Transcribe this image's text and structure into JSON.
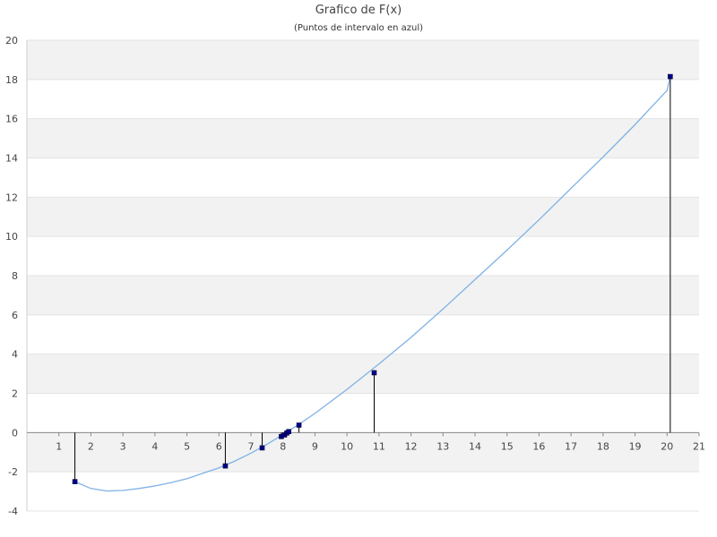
{
  "chart_data": {
    "type": "line",
    "title": "Grafico de F(x)",
    "subtitle": "(Puntos de intervalo en azul)",
    "xlabel": "",
    "ylabel": "",
    "xlim": [
      0,
      21
    ],
    "ylim": [
      -4,
      20
    ],
    "x_ticks": [
      1,
      2,
      3,
      4,
      5,
      6,
      7,
      8,
      9,
      10,
      11,
      12,
      13,
      14,
      15,
      16,
      17,
      18,
      19,
      20,
      21
    ],
    "y_ticks": [
      -4,
      -2,
      0,
      2,
      4,
      6,
      8,
      10,
      12,
      14,
      16,
      18,
      20
    ],
    "grid": "horizontal alternating bands",
    "series": [
      {
        "kind": "curve",
        "color": "#7fb2e5",
        "x": [
          1.5,
          2,
          2.5,
          3,
          3.5,
          4,
          4.5,
          5,
          5.5,
          6,
          6.5,
          7,
          7.5,
          8,
          8.5,
          9,
          10,
          11,
          12,
          13,
          14,
          15,
          16,
          17,
          18,
          19,
          20,
          20.1
        ],
        "y": [
          -2.5,
          -2.85,
          -2.98,
          -2.95,
          -2.85,
          -2.72,
          -2.55,
          -2.35,
          -2.07,
          -1.8,
          -1.45,
          -1.05,
          -0.6,
          -0.1,
          0.42,
          0.98,
          2.2,
          3.5,
          4.85,
          6.3,
          7.8,
          9.3,
          10.85,
          12.45,
          14.05,
          15.7,
          17.45,
          18.15
        ]
      },
      {
        "kind": "interval-points",
        "color": "#00008b",
        "x": [
          1.5,
          6.2,
          7.35,
          7.95,
          8.05,
          8.12,
          8.18,
          8.5,
          10.85,
          20.1
        ],
        "y": [
          -2.5,
          -1.7,
          -0.78,
          -0.2,
          -0.12,
          -0.02,
          0.05,
          0.38,
          3.05,
          18.15
        ]
      }
    ]
  }
}
